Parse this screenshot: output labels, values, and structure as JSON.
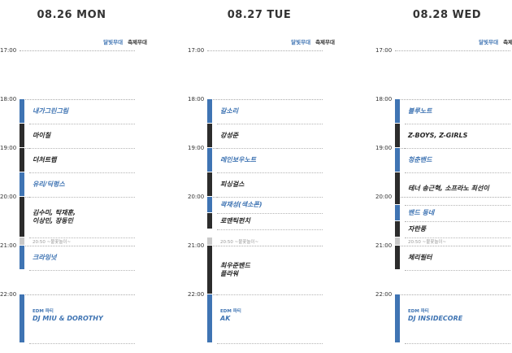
{
  "days": [
    {
      "title": "08.26 MON",
      "legend": {
        "blue": "달빛무대",
        "dark": "축제무대"
      },
      "events": [
        {
          "type": "blue",
          "name": "내가그린그림",
          "start": "18:00",
          "end": "18:30"
        },
        {
          "type": "dark",
          "name": "마이칠",
          "start": "18:30",
          "end": "19:00"
        },
        {
          "type": "dark",
          "name": "더처트랩",
          "start": "19:00",
          "end": "19:30"
        },
        {
          "type": "blue",
          "name": "유리/딕펑스",
          "start": "19:30",
          "end": "20:00"
        },
        {
          "type": "dark",
          "name": "김수미, 탁재훈,\n이상민, 장동민",
          "start": "20:00",
          "end": "20:50"
        },
        {
          "type": "grey",
          "name": "20:50 ~불꽃놀이~",
          "start": "20:50",
          "end": "21:00",
          "is_note": true
        },
        {
          "type": "blue",
          "name": "크라잉넛",
          "start": "21:00",
          "end": "21:30"
        },
        {
          "type": "blue",
          "small": "EDM 파티",
          "name": "DJ MIU & DOROTHY",
          "start": "22:00",
          "end": "23:00"
        }
      ]
    },
    {
      "title": "08.27 TUE",
      "legend": {
        "blue": "달빛무대",
        "dark": "축제무대"
      },
      "events": [
        {
          "type": "blue",
          "name": "갈소리",
          "start": "18:00",
          "end": "18:30"
        },
        {
          "type": "dark",
          "name": "강성준",
          "start": "18:30",
          "end": "19:00"
        },
        {
          "type": "blue",
          "name": "레인보우노트",
          "start": "19:00",
          "end": "19:30"
        },
        {
          "type": "dark",
          "name": "피싱걸스",
          "start": "19:30",
          "end": "20:00"
        },
        {
          "type": "blue",
          "name": "곽재성(색소폰)",
          "start": "20:00",
          "end": "20:20"
        },
        {
          "type": "dark",
          "name": "로맨틱펀치",
          "start": "20:20",
          "end": "20:40"
        },
        {
          "type": "grey",
          "name": "20:50 ~불꽃놀이~",
          "start": "20:50",
          "end": "21:00",
          "is_note": true
        },
        {
          "type": "dark",
          "name": "최우준밴드\n플라워",
          "start": "21:00",
          "end": "22:00"
        },
        {
          "type": "blue",
          "small": "EDM 파티",
          "name": "AK",
          "start": "22:00",
          "end": "23:00"
        }
      ]
    },
    {
      "title": "08.28 WED",
      "legend": {
        "blue": "달빛무대",
        "dark": "축제무대"
      },
      "events": [
        {
          "type": "blue",
          "name": "블루노트",
          "start": "18:00",
          "end": "18:30"
        },
        {
          "type": "dark",
          "name": "Z-BOYS, Z-GIRLS",
          "start": "18:30",
          "end": "19:00"
        },
        {
          "type": "blue",
          "name": "청춘밴드",
          "start": "19:00",
          "end": "19:30"
        },
        {
          "type": "dark",
          "name": "테너 송근혁, 소프라노 최선이",
          "start": "19:30",
          "end": "20:10"
        },
        {
          "type": "blue",
          "name": "밴드 동네",
          "start": "20:10",
          "end": "20:30"
        },
        {
          "type": "dark",
          "name": "자란풍",
          "start": "20:30",
          "end": "20:50"
        },
        {
          "type": "grey",
          "name": "20:50 ~불꽃놀이~",
          "start": "20:50",
          "end": "21:00",
          "is_note": true
        },
        {
          "type": "dark",
          "name": "체리필터",
          "start": "21:00",
          "end": "21:30"
        },
        {
          "type": "blue",
          "small": "EDM 파티",
          "name": "DJ INSIDECORE",
          "start": "22:00",
          "end": "23:00"
        }
      ]
    }
  ],
  "hours": [
    "17:00",
    "18:00",
    "19:00",
    "20:00",
    "21:00",
    "22:00"
  ]
}
